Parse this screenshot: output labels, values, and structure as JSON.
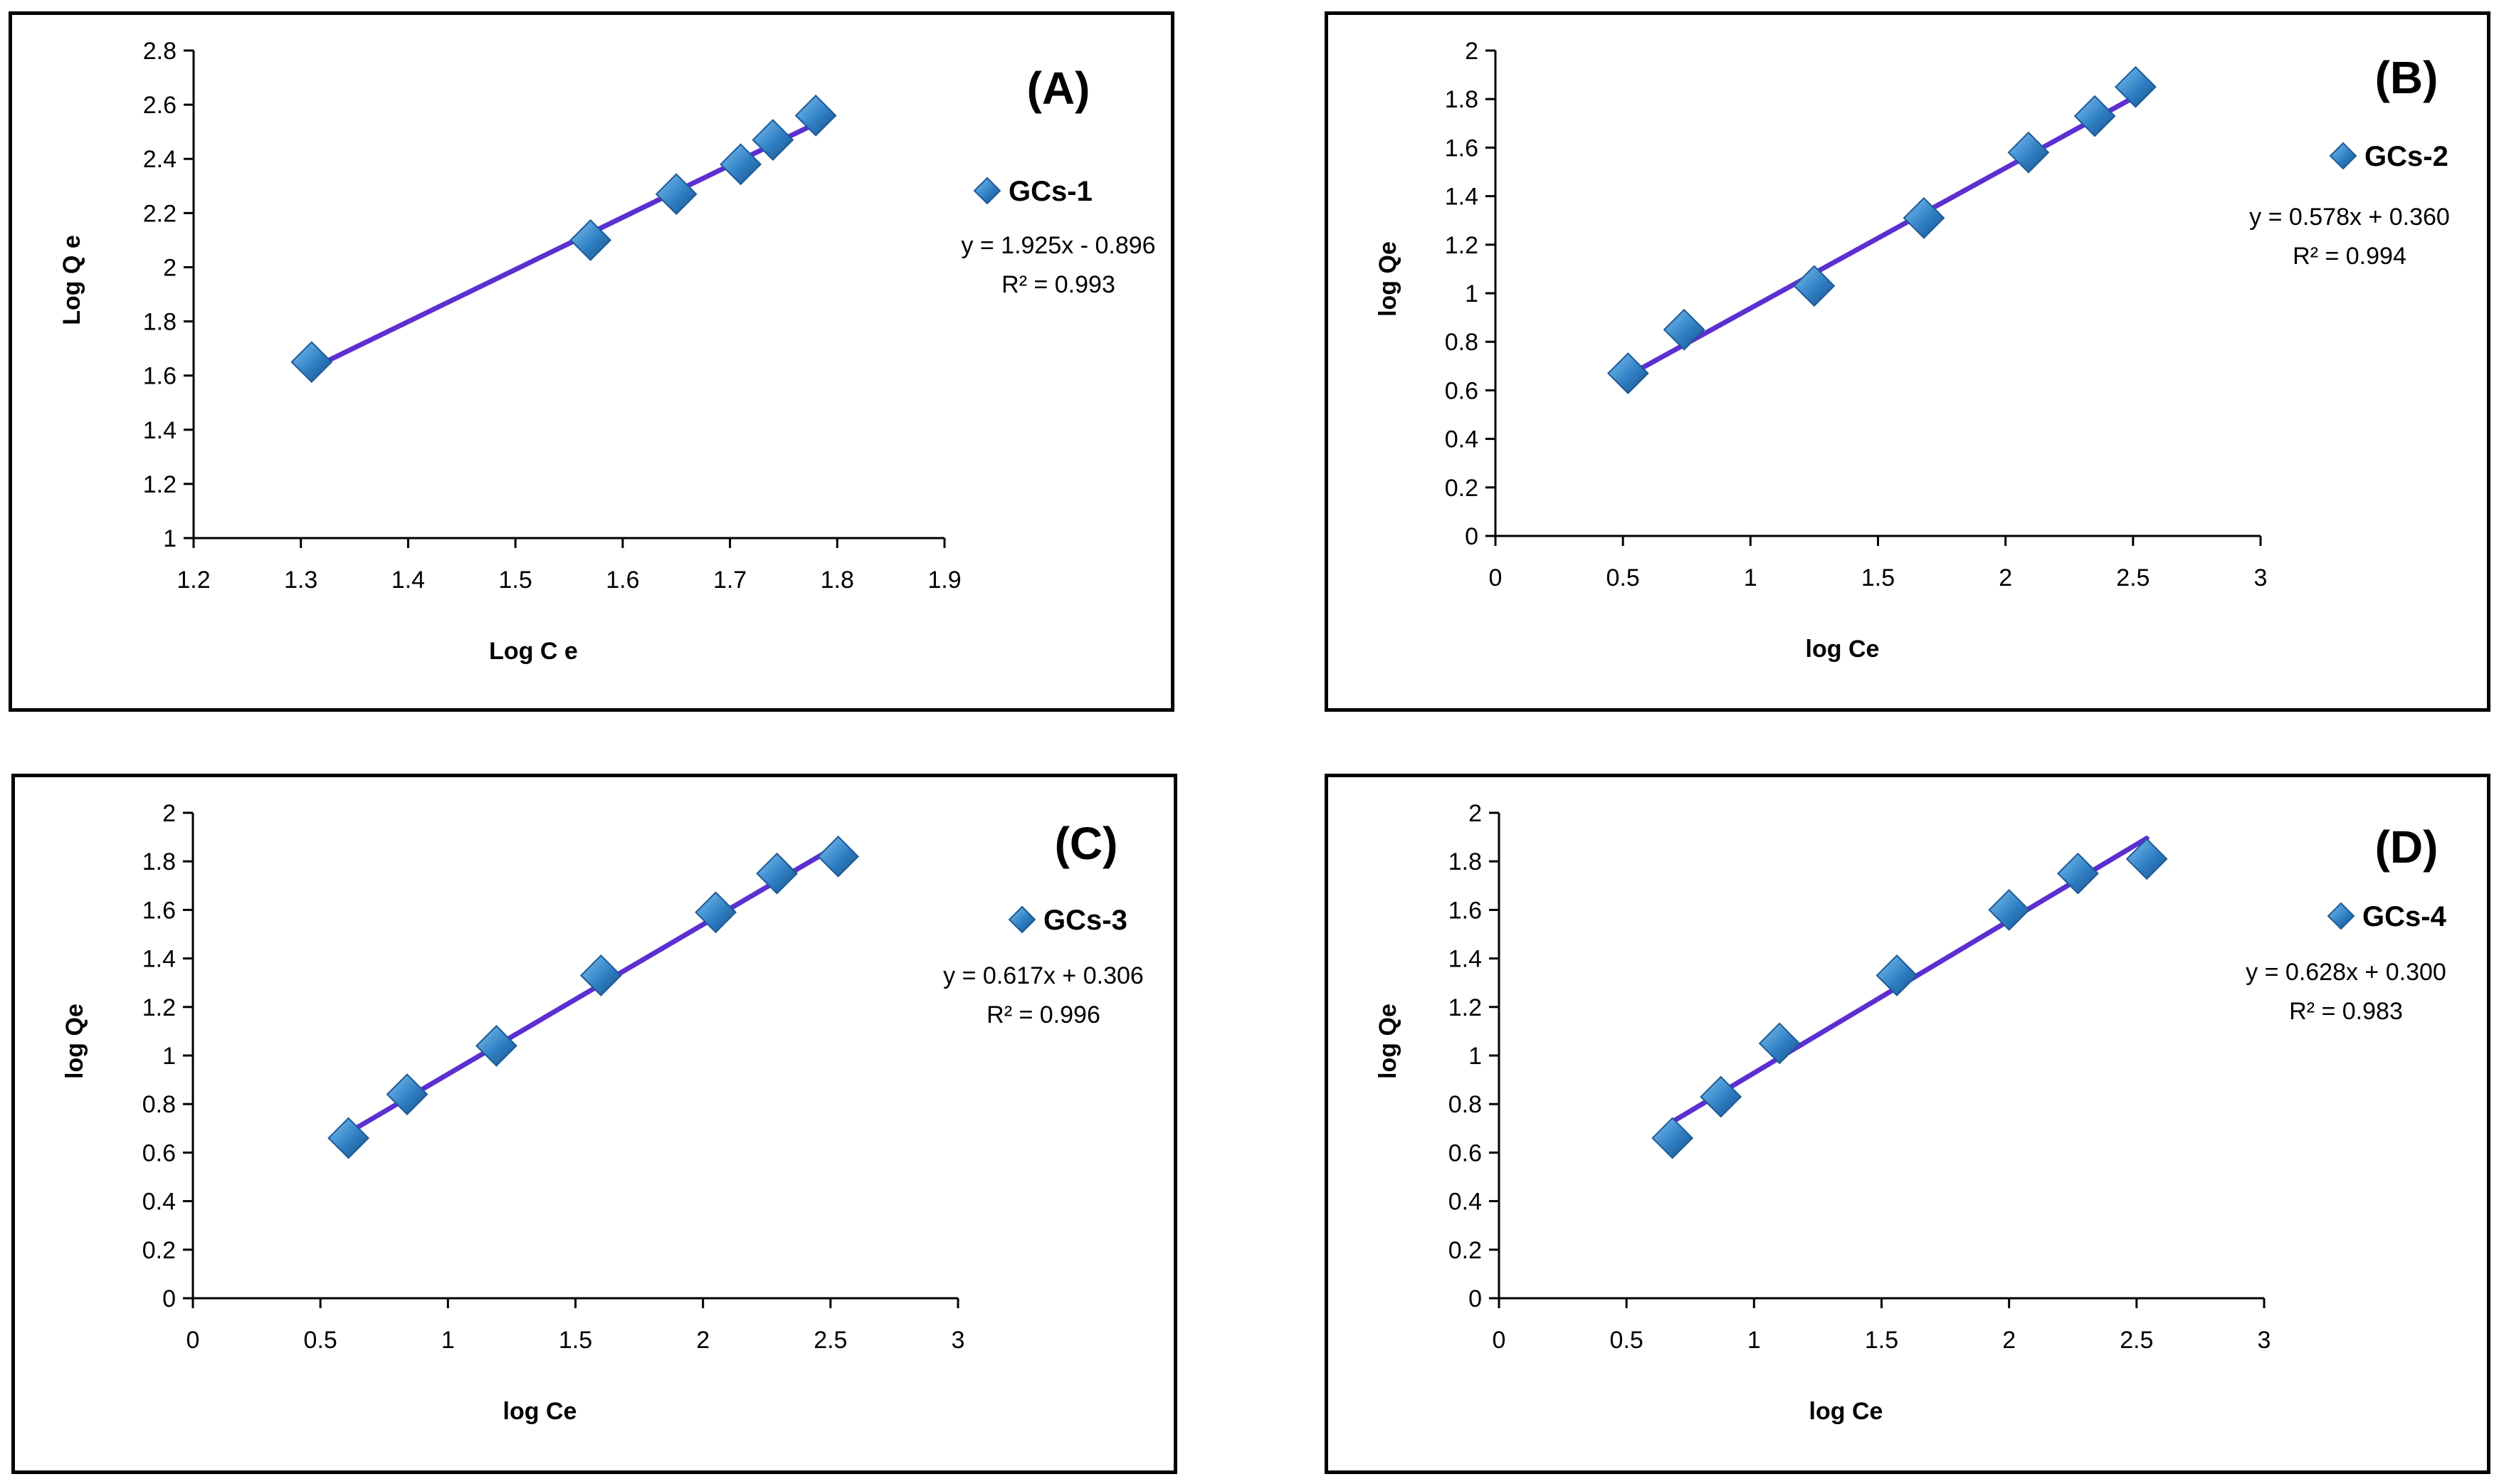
{
  "chart_data": [
    {
      "type": "scatter",
      "panel_label": "(A)",
      "xlabel": "Log C e",
      "ylabel": "Log Q e",
      "xlim": [
        1.2,
        1.9
      ],
      "ylim": [
        1,
        2.8
      ],
      "xticks": [
        1.2,
        1.3,
        1.4,
        1.5,
        1.6,
        1.7,
        1.8,
        1.9
      ],
      "yticks": [
        1,
        1.2,
        1.4,
        1.6,
        1.8,
        2,
        2.2,
        2.4,
        2.6,
        2.8
      ],
      "xtick_labels": [
        "1.2",
        "1.3",
        "1.4",
        "1.5",
        "1.6",
        "1.7",
        "1.8",
        "1.9"
      ],
      "ytick_labels": [
        "1",
        "1.2",
        "1.4",
        "1.6",
        "1.8",
        "2",
        "2.2",
        "2.4",
        "2.6",
        "2.8"
      ],
      "series": [
        {
          "name": "GCs-1",
          "x": [
            1.31,
            1.57,
            1.65,
            1.71,
            1.74,
            1.78
          ],
          "y": [
            1.65,
            2.1,
            2.27,
            2.38,
            2.47,
            2.56
          ]
        }
      ],
      "trendline": {
        "slope": 1.925,
        "intercept": -0.896,
        "x_range": [
          1.31,
          1.78
        ]
      },
      "equation": "y = 1.925x - 0.896",
      "r2": "R² = 0.993",
      "marker_color": "#2f7fc4",
      "line_color": "#5b2fd1",
      "legend_position": "top-right"
    },
    {
      "type": "scatter",
      "panel_label": "(B)",
      "xlabel": "log Ce",
      "ylabel": "log Qe",
      "xlim": [
        0,
        3
      ],
      "ylim": [
        0,
        2
      ],
      "xticks": [
        0,
        0.5,
        1,
        1.5,
        2,
        2.5,
        3
      ],
      "yticks": [
        0,
        0.2,
        0.4,
        0.6,
        0.8,
        1,
        1.2,
        1.4,
        1.6,
        1.8,
        2
      ],
      "xtick_labels": [
        "0",
        "0.5",
        "1",
        "1.5",
        "2",
        "2.5",
        "3"
      ],
      "ytick_labels": [
        "0",
        "0.2",
        "0.4",
        "0.6",
        "0.8",
        "1",
        "1.2",
        "1.4",
        "1.6",
        "1.8",
        "2"
      ],
      "series": [
        {
          "name": "GCs-2",
          "x": [
            0.52,
            0.74,
            1.25,
            1.68,
            2.09,
            2.35,
            2.51
          ],
          "y": [
            0.67,
            0.85,
            1.03,
            1.31,
            1.58,
            1.73,
            1.85
          ]
        }
      ],
      "trendline": {
        "slope": 0.578,
        "intercept": 0.36,
        "x_range": [
          0.52,
          2.51
        ]
      },
      "equation": "y = 0.578x + 0.360",
      "r2": "R² = 0.994",
      "marker_color": "#2f7fc4",
      "line_color": "#5b2fd1",
      "legend_position": "top-right"
    },
    {
      "type": "scatter",
      "panel_label": "(C)",
      "xlabel": "log Ce",
      "ylabel": "log Qe",
      "xlim": [
        0,
        3
      ],
      "ylim": [
        0,
        2
      ],
      "xticks": [
        0,
        0.5,
        1,
        1.5,
        2,
        2.5,
        3
      ],
      "yticks": [
        0,
        0.2,
        0.4,
        0.6,
        0.8,
        1,
        1.2,
        1.4,
        1.6,
        1.8,
        2
      ],
      "xtick_labels": [
        "0",
        "0.5",
        "1",
        "1.5",
        "2",
        "2.5",
        "3"
      ],
      "ytick_labels": [
        "0",
        "0.2",
        "0.4",
        "0.6",
        "0.8",
        "1",
        "1.2",
        "1.4",
        "1.6",
        "1.8",
        "2"
      ],
      "series": [
        {
          "name": "GCs-3",
          "x": [
            0.61,
            0.84,
            1.19,
            1.6,
            2.05,
            2.29,
            2.53
          ],
          "y": [
            0.66,
            0.84,
            1.04,
            1.33,
            1.59,
            1.75,
            1.82
          ]
        }
      ],
      "trendline": {
        "slope": 0.617,
        "intercept": 0.306,
        "x_range": [
          0.61,
          2.53
        ]
      },
      "equation": "y = 0.617x + 0.306",
      "r2": "R² = 0.996",
      "marker_color": "#2f7fc4",
      "line_color": "#5b2fd1",
      "legend_position": "top-right"
    },
    {
      "type": "scatter",
      "panel_label": "(D)",
      "xlabel": "log Ce",
      "ylabel": "log Qe",
      "xlim": [
        0,
        3
      ],
      "ylim": [
        0,
        2
      ],
      "xticks": [
        0,
        0.5,
        1,
        1.5,
        2,
        2.5,
        3
      ],
      "yticks": [
        0,
        0.2,
        0.4,
        0.6,
        0.8,
        1,
        1.2,
        1.4,
        1.6,
        1.8,
        2
      ],
      "xtick_labels": [
        "0",
        "0.5",
        "1",
        "1.5",
        "2",
        "2.5",
        "3"
      ],
      "ytick_labels": [
        "0",
        "0.2",
        "0.4",
        "0.6",
        "0.8",
        "1",
        "1.2",
        "1.4",
        "1.6",
        "1.8",
        "2"
      ],
      "series": [
        {
          "name": "GCs-4",
          "x": [
            0.68,
            0.87,
            1.1,
            1.56,
            2.0,
            2.27,
            2.54
          ],
          "y": [
            0.66,
            0.83,
            1.05,
            1.33,
            1.6,
            1.75,
            1.81
          ]
        }
      ],
      "trendline": {
        "slope": 0.628,
        "intercept": 0.3,
        "x_range": [
          0.68,
          2.54
        ]
      },
      "equation": "y = 0.628x + 0.300",
      "r2": "R² = 0.983",
      "marker_color": "#2f7fc4",
      "line_color": "#5b2fd1",
      "legend_position": "top-right"
    }
  ]
}
